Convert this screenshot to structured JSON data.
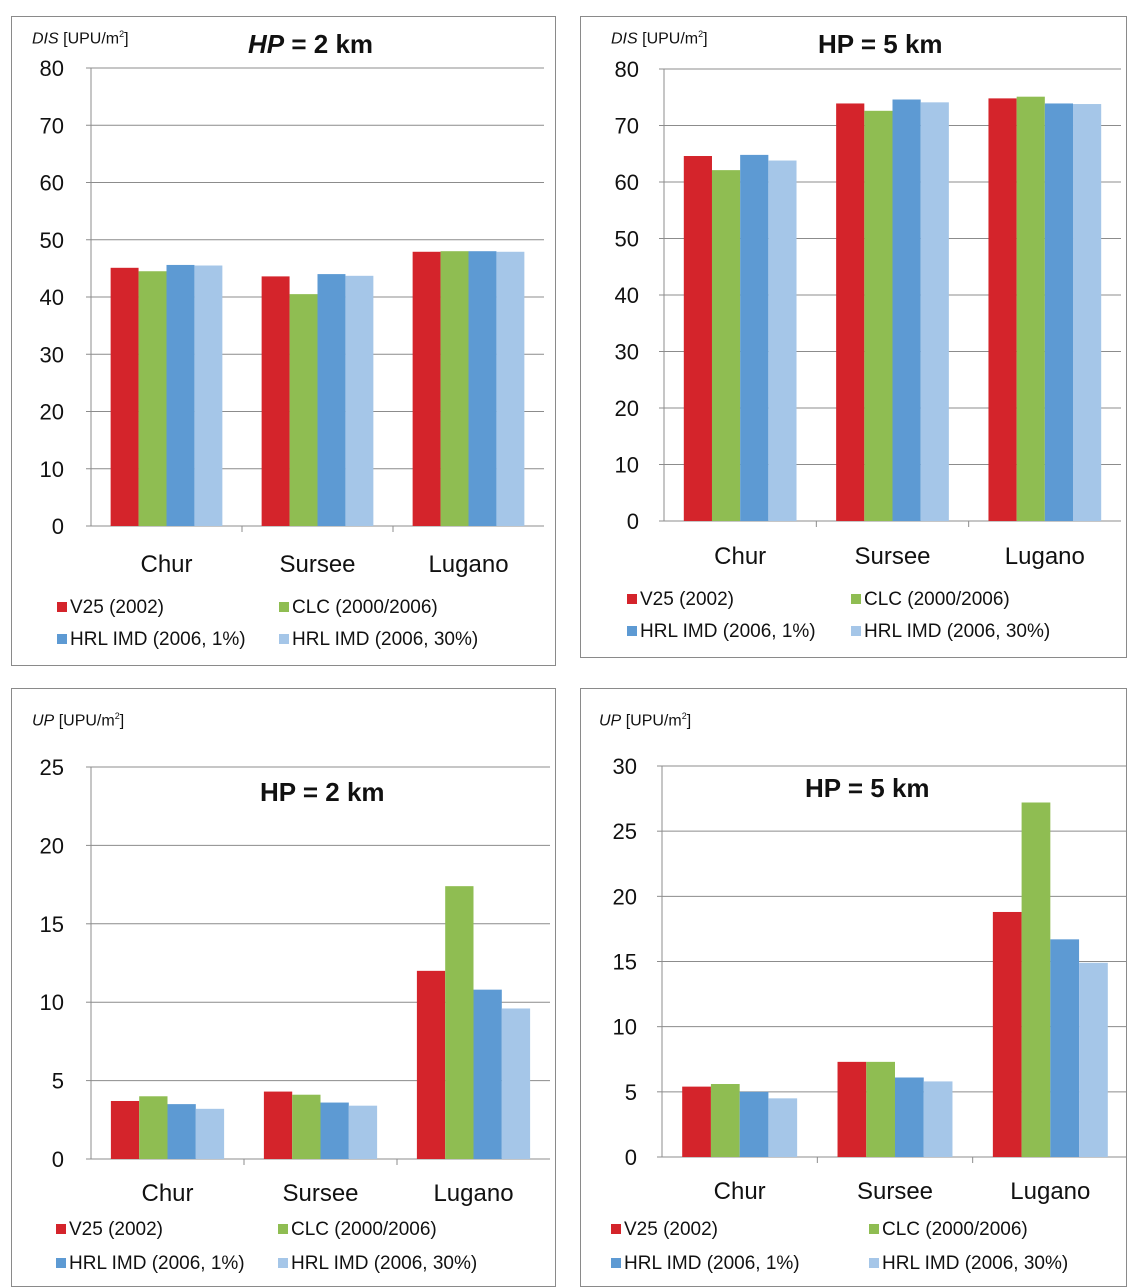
{
  "colors": {
    "V25 (2002)": "#d4242b",
    "CLC (2000/2006)": "#8fbd52",
    "HRL IMD (2006, 1%)": "#5d9ad3",
    "HRL IMD (2006, 30%)": "#a5c6e8",
    "grid": "#8c8c8c"
  },
  "panels": [
    {
      "ylabel_var": "DIS",
      "ylabel_unit": "[UPU/m",
      "ylabel_sup": "2",
      "ylabel_close": "]",
      "title_var": "HP",
      "title_rest": " = 2 km",
      "legend": [
        "V25 (2002)",
        "CLC (2000/2006)",
        "HRL IMD (2006, 1%)",
        "HRL IMD (2006, 30%)"
      ]
    },
    {
      "ylabel_var": "DIS",
      "ylabel_unit": "[UPU/m",
      "ylabel_sup": "2",
      "ylabel_close": "]",
      "title_var": "",
      "title_rest": "HP = 5 km",
      "legend": [
        "V25 (2002)",
        "CLC (2000/2006)",
        "HRL IMD (2006, 1%)",
        "HRL IMD (2006, 30%)"
      ]
    },
    {
      "ylabel_var": "UP",
      "ylabel_unit": "[UPU/m",
      "ylabel_sup": "2",
      "ylabel_close": "]",
      "title_var": "",
      "title_rest": "HP = 2 km",
      "legend": [
        "V25 (2002)",
        "CLC (2000/2006)",
        "HRL IMD (2006, 1%)",
        "HRL IMD (2006, 30%)"
      ]
    },
    {
      "ylabel_var": "UP",
      "ylabel_unit": "[UPU/m",
      "ylabel_sup": "2",
      "ylabel_close": "]",
      "title_var": "",
      "title_rest": "HP = 5 km",
      "legend": [
        "V25 (2002)",
        "CLC (2000/2006)",
        "HRL IMD (2006, 1%)",
        "HRL IMD (2006, 30%)"
      ]
    }
  ],
  "chart_data": [
    {
      "type": "bar",
      "title": "HP = 2 km",
      "ylabel": "DIS [UPU/m2]",
      "categories": [
        "Chur",
        "Sursee",
        "Lugano"
      ],
      "ylim": [
        0,
        80
      ],
      "ytick_step": 10,
      "grid": true,
      "legend_position": "bottom",
      "series": [
        {
          "name": "V25 (2002)",
          "values": [
            45.1,
            43.6,
            47.9
          ]
        },
        {
          "name": "CLC (2000/2006)",
          "values": [
            44.5,
            40.5,
            48.0
          ]
        },
        {
          "name": "HRL IMD (2006, 1%)",
          "values": [
            45.6,
            44.0,
            48.0
          ]
        },
        {
          "name": "HRL IMD (2006, 30%)",
          "values": [
            45.5,
            43.7,
            47.9
          ]
        }
      ]
    },
    {
      "type": "bar",
      "title": "HP = 5 km",
      "ylabel": "DIS [UPU/m2]",
      "categories": [
        "Chur",
        "Sursee",
        "Lugano"
      ],
      "ylim": [
        0,
        80
      ],
      "ytick_step": 10,
      "grid": true,
      "legend_position": "bottom",
      "series": [
        {
          "name": "V25 (2002)",
          "values": [
            64.6,
            73.9,
            74.8
          ]
        },
        {
          "name": "CLC (2000/2006)",
          "values": [
            62.1,
            72.6,
            75.1
          ]
        },
        {
          "name": "HRL IMD (2006, 1%)",
          "values": [
            64.8,
            74.6,
            73.9
          ]
        },
        {
          "name": "HRL IMD (2006, 30%)",
          "values": [
            63.8,
            74.1,
            73.8
          ]
        }
      ]
    },
    {
      "type": "bar",
      "title": "HP = 2 km",
      "ylabel": "UP [UPU/m2]",
      "categories": [
        "Chur",
        "Sursee",
        "Lugano"
      ],
      "ylim": [
        0,
        25
      ],
      "ytick_step": 5,
      "grid": true,
      "legend_position": "bottom",
      "series": [
        {
          "name": "V25 (2002)",
          "values": [
            3.7,
            4.3,
            12.0
          ]
        },
        {
          "name": "CLC (2000/2006)",
          "values": [
            4.0,
            4.1,
            17.4
          ]
        },
        {
          "name": "HRL IMD (2006, 1%)",
          "values": [
            3.5,
            3.6,
            10.8
          ]
        },
        {
          "name": "HRL IMD (2006, 30%)",
          "values": [
            3.2,
            3.4,
            9.6
          ]
        }
      ]
    },
    {
      "type": "bar",
      "title": "HP = 5 km",
      "ylabel": "UP [UPU/m2]",
      "categories": [
        "Chur",
        "Sursee",
        "Lugano"
      ],
      "ylim": [
        0,
        30
      ],
      "ytick_step": 5,
      "grid": true,
      "legend_position": "bottom",
      "series": [
        {
          "name": "V25 (2002)",
          "values": [
            5.4,
            7.3,
            18.8
          ]
        },
        {
          "name": "CLC (2000/2006)",
          "values": [
            5.6,
            7.3,
            27.2
          ]
        },
        {
          "name": "HRL IMD (2006, 1%)",
          "values": [
            5.0,
            6.1,
            16.7
          ]
        },
        {
          "name": "HRL IMD (2006, 30%)",
          "values": [
            4.5,
            5.8,
            14.9
          ]
        }
      ]
    }
  ]
}
